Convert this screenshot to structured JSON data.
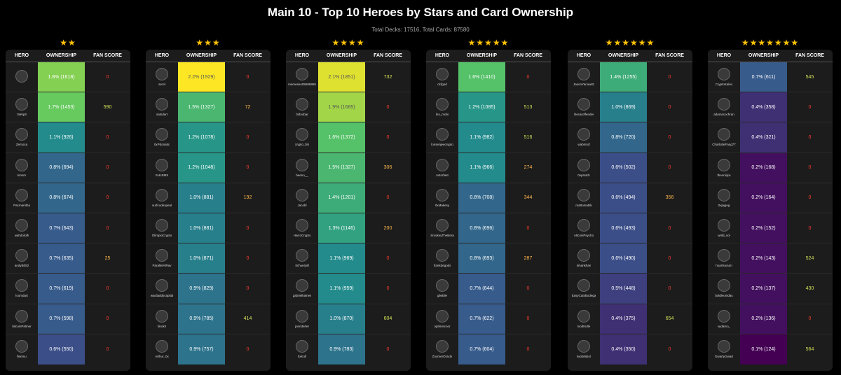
{
  "title": "Main 10 - Top 10 Heroes by Stars and Card Ownership",
  "subtitle": "Total Decks: 17516, Total Cards: 87580",
  "headers": {
    "hero": "HERO",
    "ownership": "OWNERSHIP",
    "fan": "FAN SCORE"
  },
  "colors": {
    "background": "#000000",
    "panel": "#1c1c1c",
    "star": "#ffc107",
    "fan_zero": "#ff3b30",
    "fan_mid": "#ffb74d",
    "fan_high": "#d4e157",
    "ownership_scale": [
      "#440154",
      "#3b528b",
      "#21918c",
      "#5ec962",
      "#fde725"
    ]
  },
  "chart_data": [
    {
      "type": "table",
      "stars": 2,
      "rows": [
        {
          "hero": "",
          "ownership": "1.8% (1618)",
          "value": 1.8,
          "fan": "0"
        },
        {
          "hero": "0xKipit",
          "ownership": "1.7% (1453)",
          "value": 1.7,
          "fan": "590"
        },
        {
          "hero": "Zemoca",
          "ownership": "1.1% (926)",
          "value": 1.1,
          "fan": "0"
        },
        {
          "hero": "kmnm",
          "ownership": "0.8% (694)",
          "value": 0.8,
          "fan": "0"
        },
        {
          "hero": "Pacmanitha",
          "ownership": "0.8% (674)",
          "value": 0.8,
          "fan": "0"
        },
        {
          "hero": "wahdototh",
          "ownership": "0.7% (643)",
          "value": 0.7,
          "fan": "0"
        },
        {
          "hero": "andyB052",
          "ownership": "0.7% (635)",
          "value": 0.7,
          "fan": "25"
        },
        {
          "hero": "loomdart",
          "ownership": "0.7% (619)",
          "value": 0.7,
          "fan": "0"
        },
        {
          "hero": "bitcoinPalmer",
          "ownership": "0.7% (598)",
          "value": 0.7,
          "fan": "0"
        },
        {
          "hero": "flenmu",
          "ownership": "0.6% (550)",
          "value": 0.6,
          "fan": "0"
        }
      ]
    },
    {
      "type": "table",
      "stars": 3,
      "rows": [
        {
          "hero": "arcel",
          "ownership": "2.2% (1929)",
          "value": 2.2,
          "fan": "0"
        },
        {
          "hero": "satsdart",
          "ownership": "1.5% (1327)",
          "value": 1.5,
          "fan": "72"
        },
        {
          "hero": "0xPdonatic",
          "ownership": "1.2% (1078)",
          "value": 1.2,
          "fan": "0"
        },
        {
          "hero": "SHLEMS",
          "ownership": "1.2% (1048)",
          "value": 1.2,
          "fan": "0"
        },
        {
          "hero": "surfcodexpeal",
          "ownership": "1.0% (881)",
          "value": 1.0,
          "fan": "192"
        },
        {
          "hero": "OlimpioCrypto",
          "ownership": "1.0% (881)",
          "value": 1.0,
          "fan": "0"
        },
        {
          "hero": "ParallelAlRav",
          "ownership": "1.0% (871)",
          "value": 1.0,
          "fan": "0"
        },
        {
          "hero": "wardaddycapital",
          "ownership": "0.9% (829)",
          "value": 0.9,
          "fan": "0"
        },
        {
          "hero": "farokh",
          "ownership": "0.9% (785)",
          "value": 0.9,
          "fan": "414"
        },
        {
          "hero": "Arthur_0x",
          "ownership": "0.9% (757)",
          "value": 0.9,
          "fan": "0"
        }
      ]
    },
    {
      "type": "table",
      "stars": 4,
      "rows": [
        {
          "hero": "memeseo05696965",
          "ownership": "2.1% (1851)",
          "value": 2.1,
          "fan": "732"
        },
        {
          "hero": "0xfoobar",
          "ownership": "1.9% (1685)",
          "value": 1.9,
          "fan": "0"
        },
        {
          "hero": "crypto_fim",
          "ownership": "1.6% (1372)",
          "value": 1.6,
          "fan": "0"
        },
        {
          "hero": "beeno__",
          "ownership": "1.5% (1327)",
          "value": 1.5,
          "fan": "306"
        },
        {
          "hero": "Jacobl",
          "ownership": "1.4% (1201)",
          "value": 1.4,
          "fan": "0"
        },
        {
          "hero": "HarroCrypto",
          "ownership": "1.3% (1146)",
          "value": 1.3,
          "fan": "200"
        },
        {
          "hero": "Itchuerpill",
          "ownership": "1.1% (969)",
          "value": 1.1,
          "fan": "0"
        },
        {
          "hero": "gabrielhaines",
          "ownership": "1.1% (959)",
          "value": 1.1,
          "fan": "0"
        },
        {
          "hero": "jonnderler",
          "ownership": "1.0% (870)",
          "value": 1.0,
          "fan": "604"
        },
        {
          "hero": "0xKofi",
          "ownership": "0.9% (783)",
          "value": 0.9,
          "fan": "0"
        }
      ]
    },
    {
      "type": "table",
      "stars": 5,
      "rows": [
        {
          "hero": "dcfgod",
          "ownership": "1.6% (1410)",
          "value": 1.6,
          "fan": "0"
        },
        {
          "hero": "lex_mobi",
          "ownership": "1.2% (1085)",
          "value": 1.2,
          "fan": "513"
        },
        {
          "hero": "lonsenjeecrypto",
          "ownership": "1.1% (982)",
          "value": 1.1,
          "fan": "516"
        },
        {
          "hero": "notorfast",
          "ownership": "1.1% (966)",
          "value": 1.1,
          "fan": "274"
        },
        {
          "hero": "0xMakesy",
          "ownership": "0.8% (708)",
          "value": 0.8,
          "fan": "344"
        },
        {
          "hero": "SmokeyTheBera",
          "ownership": "0.8% (696)",
          "value": 0.8,
          "fan": "0"
        },
        {
          "hero": "frankdegods",
          "ownership": "0.8% (693)",
          "value": 0.8,
          "fan": "287"
        },
        {
          "hero": "gliebile",
          "ownership": "0.7% (644)",
          "value": 0.7,
          "fan": "0"
        },
        {
          "hero": "optimiscoor",
          "ownership": "0.7% (622)",
          "value": 0.7,
          "fan": "0"
        },
        {
          "hero": "ZoomerOracle",
          "ownership": "0.7% (604)",
          "value": 0.7,
          "fan": "0"
        }
      ]
    },
    {
      "type": "table",
      "stars": 6,
      "rows": [
        {
          "hero": "JasonYanowitz",
          "ownership": "1.4% (1255)",
          "value": 1.4,
          "fan": "0"
        },
        {
          "hero": "thecaroffender",
          "ownership": "1.0% (869)",
          "value": 1.0,
          "fan": "0"
        },
        {
          "hero": "wabmrof",
          "ownership": "0.8% (720)",
          "value": 0.8,
          "fan": "0"
        },
        {
          "hero": "0xpratch",
          "ownership": "0.6% (502)",
          "value": 0.6,
          "fan": "0"
        },
        {
          "hero": "mattomattik",
          "ownership": "0.6% (494)",
          "value": 0.6,
          "fan": "356"
        },
        {
          "hero": "AltcoinPsycho",
          "ownership": "0.6% (493)",
          "value": 0.6,
          "fan": "0"
        },
        {
          "hero": "timankhan",
          "ownership": "0.6% (490)",
          "value": 0.6,
          "fan": "0"
        },
        {
          "hero": "EasyCatsBodega",
          "ownership": "0.5% (448)",
          "value": 0.5,
          "fan": "0"
        },
        {
          "hero": "loodKidle",
          "ownership": "0.4% (375)",
          "value": 0.4,
          "fan": "654"
        },
        {
          "hero": "twobitidiot",
          "ownership": "0.4% (350)",
          "value": 0.4,
          "fan": "0"
        }
      ]
    },
    {
      "type": "table",
      "stars": 7,
      "rows": [
        {
          "hero": "CryptoKaleo",
          "ownership": "0.7% (611)",
          "value": 0.7,
          "fan": "545"
        },
        {
          "hero": "adamscochran",
          "ownership": "0.4% (358)",
          "value": 0.4,
          "fan": "0"
        },
        {
          "hero": "CharlotteFang77",
          "ownership": "0.4% (321)",
          "value": 0.4,
          "fan": "0"
        },
        {
          "hero": "theoniijca",
          "ownership": "0.2% (168)",
          "value": 0.2,
          "fan": "0"
        },
        {
          "hero": "0xjayjeg",
          "ownership": "0.2% (164)",
          "value": 0.2,
          "fan": "0"
        },
        {
          "hero": "wrild_sol",
          "ownership": "0.2% (152)",
          "value": 0.2,
          "fan": "0"
        },
        {
          "hero": "hoartsosum",
          "ownership": "0.2% (143)",
          "value": 0.2,
          "fan": "524"
        },
        {
          "hero": "boldleonidas",
          "ownership": "0.2% (137)",
          "value": 0.2,
          "fan": "430"
        },
        {
          "hero": "vydamo_",
          "ownership": "0.2% (136)",
          "value": 0.2,
          "fan": "0"
        },
        {
          "hero": "GwartyGwart",
          "ownership": "0.1% (124)",
          "value": 0.1,
          "fan": "564"
        }
      ]
    }
  ]
}
